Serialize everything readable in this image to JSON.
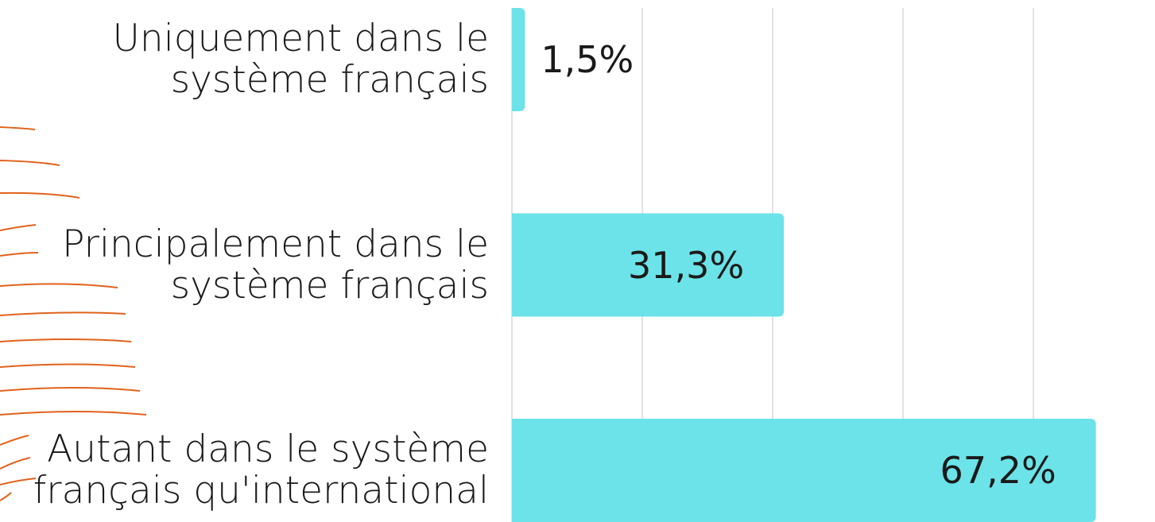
{
  "chart_data": {
    "type": "bar",
    "orientation": "horizontal",
    "categories": [
      "Uniquement dans le\nsystème français",
      "Principalement dans le\nsystème français",
      "Autant dans le système\nfrançais qu'international"
    ],
    "values": [
      1.5,
      31.3,
      67.2
    ],
    "value_labels": [
      "1,5%",
      "31,3%",
      "67,2%"
    ],
    "color": "#6ce3e8",
    "xlim": [
      0,
      74
    ],
    "xticks": [
      0,
      15,
      30,
      45,
      60
    ],
    "grid": true
  }
}
